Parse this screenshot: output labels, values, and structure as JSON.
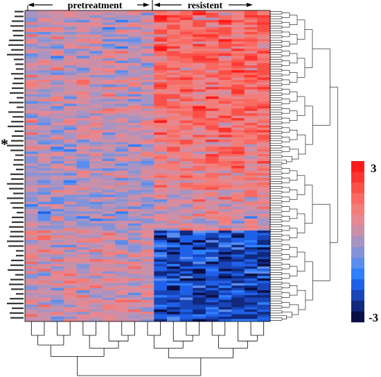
{
  "chart_data": {
    "type": "heatmap",
    "title": "",
    "groups": [
      {
        "label": "pretreatment",
        "columns": 10
      },
      {
        "label": "resistent",
        "columns": 9
      }
    ],
    "n_rows": 130,
    "n_columns": 19,
    "color_scale": {
      "min": -3,
      "max": 3,
      "min_label": "-3",
      "max_label": "3",
      "colors": [
        "#0a0f45",
        "#10297f",
        "#1845b8",
        "#1f60e8",
        "#2f7fff",
        "#5b8dee",
        "#8493d8",
        "#a894c2",
        "#c990a9",
        "#e48893",
        "#f27e7a",
        "#f86a62",
        "#fb5048",
        "#fd3530",
        "#ff1a1a"
      ]
    },
    "row_blocks": [
      {
        "rows": [
          0,
          55
        ],
        "pretreatment_mean": 0.3,
        "resistent_mean": 1.6
      },
      {
        "rows": [
          55,
          75
        ],
        "pretreatment_mean": 0.1,
        "resistent_mean": 1.2
      },
      {
        "rows": [
          75,
          92
        ],
        "pretreatment_mean": 0.0,
        "resistent_mean": 0.5
      },
      {
        "rows": [
          92,
          130
        ],
        "pretreatment_mean": 0.5,
        "resistent_mean": -2.0
      }
    ],
    "marked_row_label": "*"
  },
  "colors": {
    "blue": "#1f60e8",
    "red": "#ff1a1a"
  }
}
